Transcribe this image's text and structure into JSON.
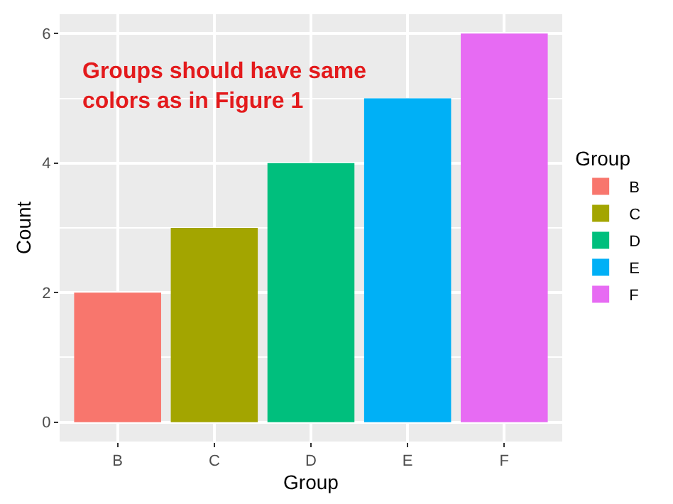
{
  "chart_data": {
    "type": "bar",
    "xlabel": "Group",
    "ylabel": "Count",
    "legend_title": "Group",
    "categories": [
      "B",
      "C",
      "D",
      "E",
      "F"
    ],
    "series": [
      {
        "name": "B",
        "color": "#f8766d",
        "values": [
          2,
          null,
          null,
          null,
          null
        ]
      },
      {
        "name": "C",
        "color": "#a3a500",
        "values": [
          null,
          3,
          null,
          null,
          null
        ]
      },
      {
        "name": "D",
        "color": "#00bf7d",
        "values": [
          null,
          null,
          4,
          null,
          null
        ]
      },
      {
        "name": "E",
        "color": "#00b0f6",
        "values": [
          null,
          null,
          null,
          5,
          null
        ]
      },
      {
        "name": "F",
        "color": "#e76bf3",
        "values": [
          null,
          null,
          null,
          null,
          6
        ]
      }
    ],
    "ylim": [
      -0.3,
      6.3
    ],
    "yticks": [
      0,
      2,
      4,
      6
    ],
    "grid": true,
    "legend": "right",
    "annotations": [
      "Groups should have same\ncolors as in Figure 1"
    ]
  }
}
